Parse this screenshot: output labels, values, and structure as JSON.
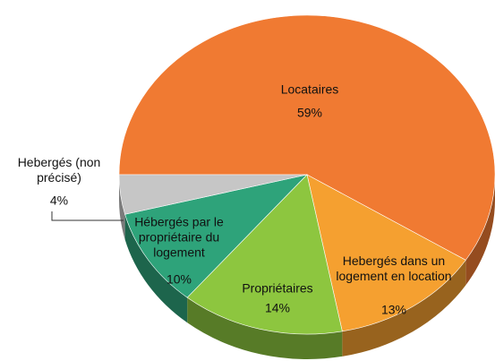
{
  "chart_data": {
    "type": "pie",
    "categories": [
      "Locataires",
      "Hebergés dans un logement en location",
      "Propriétaires",
      "Hébergés par le propriétaire du logement",
      "Hebergés (non précisé)"
    ],
    "values": [
      59,
      13,
      14,
      10,
      4
    ],
    "value_labels": [
      "59%",
      "13%",
      "14%",
      "10%",
      "4%"
    ],
    "colors": [
      "#f07a32",
      "#f5a030",
      "#8dc63f",
      "#2ea37a",
      "#c6c6c6"
    ]
  }
}
